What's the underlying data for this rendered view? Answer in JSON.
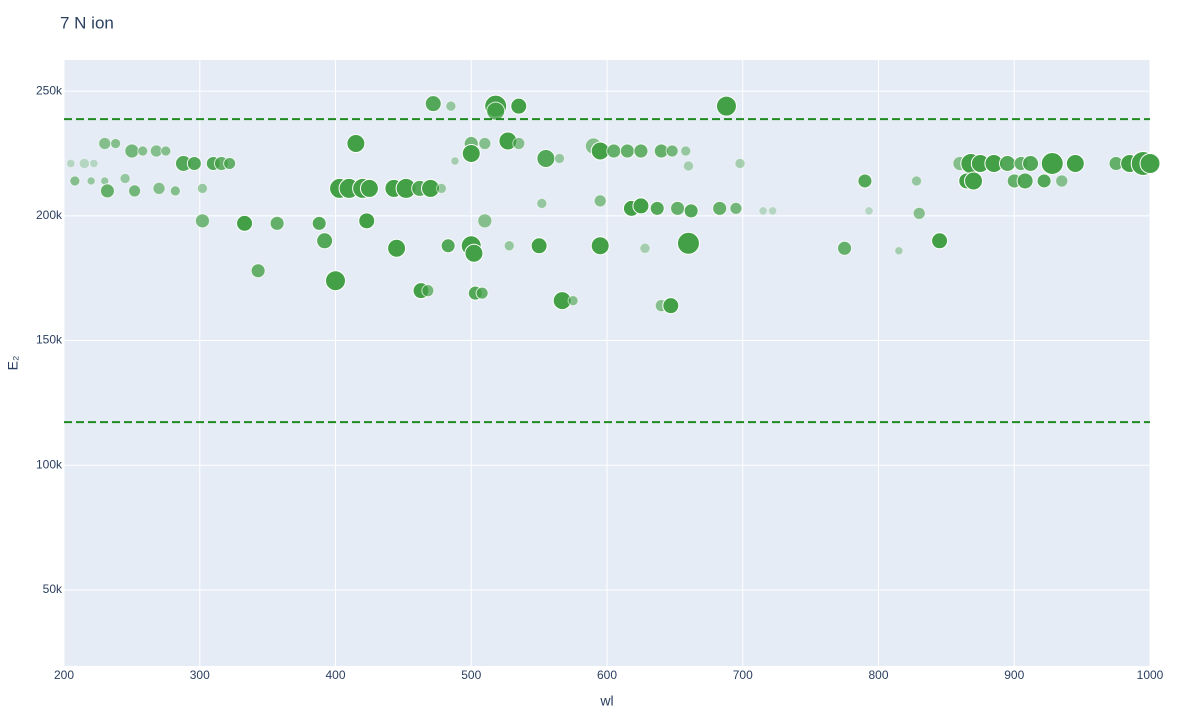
{
  "chart_data": {
    "type": "scatter",
    "title": "7 N ion",
    "x_label": "wl",
    "y_label": "E₂",
    "xlim": [
      200,
      1000
    ],
    "ylim": [
      19500,
      262500
    ],
    "xticks": [
      200,
      300,
      400,
      500,
      600,
      700,
      800,
      900,
      1000
    ],
    "yticks": [
      {
        "value": 50000,
        "label": "50k"
      },
      {
        "value": 100000,
        "label": "100k"
      },
      {
        "value": 150000,
        "label": "150k"
      },
      {
        "value": 200000,
        "label": "200k"
      },
      {
        "value": 250000,
        "label": "250k"
      }
    ],
    "grid": true,
    "color": "#43a047",
    "hline_color": "#1f8a1f",
    "hlines": [
      238800,
      117300
    ],
    "x": [
      205,
      215,
      222,
      288,
      296,
      310,
      316,
      322,
      698,
      660,
      860,
      868,
      875,
      885,
      895,
      905,
      912,
      928,
      945,
      975,
      985,
      995,
      1000,
      230,
      238,
      415,
      500,
      510,
      527,
      535,
      590,
      250,
      258,
      268,
      275,
      595,
      605,
      615,
      625,
      640,
      648,
      658,
      500,
      555,
      565,
      472,
      485,
      518,
      535,
      688,
      518,
      208,
      220,
      230,
      245,
      790,
      828,
      865,
      870,
      900,
      908,
      922,
      935,
      232,
      252,
      270,
      282,
      302,
      403,
      410,
      420,
      425,
      443,
      452,
      462,
      470,
      478,
      488,
      552,
      595,
      618,
      625,
      637,
      652,
      662,
      683,
      695,
      715,
      722,
      830,
      793,
      302,
      333,
      357,
      388,
      423,
      510,
      392,
      445,
      483,
      500,
      502,
      528,
      550,
      595,
      628,
      660,
      775,
      815,
      845,
      343,
      400,
      463,
      468,
      503,
      508,
      567,
      575,
      640,
      647
    ],
    "y": [
      221000,
      221000,
      221000,
      221000,
      221000,
      221000,
      221000,
      221000,
      221000,
      220000,
      221000,
      221000,
      221000,
      221000,
      221000,
      221000,
      221000,
      221000,
      221000,
      221000,
      221000,
      221000,
      221000,
      229000,
      229000,
      229000,
      229000,
      229000,
      230000,
      229000,
      228000,
      226000,
      226000,
      226000,
      226000,
      226000,
      226000,
      226000,
      226000,
      226000,
      226000,
      226000,
      225000,
      223000,
      223000,
      245000,
      244000,
      244000,
      244000,
      244000,
      242000,
      214000,
      214000,
      214000,
      215000,
      214000,
      214000,
      214000,
      214000,
      214000,
      214000,
      214000,
      214000,
      210000,
      210000,
      211000,
      210000,
      211000,
      211000,
      211000,
      211000,
      211000,
      211000,
      211000,
      211000,
      211000,
      211000,
      222000,
      205000,
      206000,
      203000,
      204000,
      203000,
      203000,
      202000,
      203000,
      203000,
      202000,
      202000,
      201000,
      202000,
      198000,
      197000,
      197000,
      197000,
      198000,
      198000,
      190000,
      187000,
      188000,
      188000,
      185000,
      188000,
      188000,
      188000,
      187000,
      189000,
      187000,
      186000,
      190000,
      178000,
      174000,
      170000,
      170000,
      169000,
      169000,
      166000,
      166000,
      164000,
      164000
    ],
    "sizes": [
      8,
      10,
      8,
      16,
      14,
      14,
      14,
      12,
      10,
      10,
      14,
      20,
      18,
      18,
      16,
      14,
      16,
      22,
      18,
      14,
      18,
      24,
      20,
      12,
      10,
      18,
      14,
      12,
      18,
      12,
      16,
      14,
      10,
      12,
      10,
      18,
      14,
      14,
      14,
      14,
      12,
      10,
      18,
      18,
      10,
      16,
      10,
      22,
      16,
      20,
      18,
      10,
      8,
      8,
      10,
      14,
      10,
      16,
      18,
      14,
      16,
      14,
      12,
      14,
      12,
      12,
      10,
      10,
      20,
      20,
      20,
      18,
      18,
      20,
      16,
      18,
      10,
      8,
      10,
      12,
      16,
      16,
      14,
      14,
      14,
      14,
      12,
      8,
      8,
      12,
      8,
      14,
      16,
      14,
      14,
      16,
      14,
      16,
      18,
      14,
      20,
      18,
      10,
      16,
      18,
      10,
      22,
      14,
      8,
      16,
      14,
      20,
      16,
      12,
      14,
      12,
      18,
      10,
      12,
      16
    ],
    "opacities": [
      0.3,
      0.3,
      0.3,
      0.9,
      0.9,
      0.9,
      0.8,
      0.8,
      0.4,
      0.4,
      0.6,
      1,
      1,
      1,
      0.9,
      0.8,
      0.9,
      1,
      1,
      0.8,
      1,
      1,
      1,
      0.6,
      0.6,
      1,
      0.7,
      0.6,
      1,
      0.6,
      0.6,
      0.7,
      0.6,
      0.6,
      0.6,
      1,
      0.8,
      0.8,
      0.8,
      0.8,
      0.7,
      0.5,
      1,
      0.9,
      0.5,
      0.9,
      0.5,
      1,
      1,
      1,
      0.8,
      0.6,
      0.5,
      0.5,
      0.5,
      0.9,
      0.5,
      1,
      1,
      0.8,
      0.9,
      0.9,
      0.6,
      0.8,
      0.7,
      0.6,
      0.6,
      0.5,
      1,
      1,
      1,
      1,
      1,
      1,
      0.9,
      1,
      0.5,
      0.4,
      0.5,
      0.6,
      1,
      1,
      0.9,
      0.8,
      0.9,
      0.8,
      0.7,
      0.3,
      0.3,
      0.6,
      0.3,
      0.7,
      1,
      0.8,
      0.9,
      1,
      0.6,
      0.9,
      1,
      0.9,
      1,
      1,
      0.5,
      1,
      1,
      0.4,
      1,
      0.8,
      0.4,
      1,
      0.8,
      1,
      1,
      0.7,
      0.9,
      0.8,
      1,
      0.6,
      0.6,
      1
    ]
  }
}
